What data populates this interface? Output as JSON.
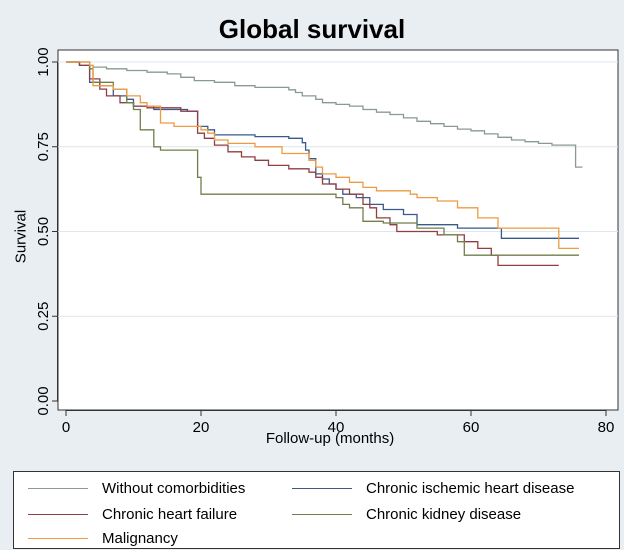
{
  "chart_data": {
    "type": "line",
    "title": "Global survival",
    "xlabel": "Follow-up (months)",
    "ylabel": "Survival",
    "xlim": [
      0,
      80
    ],
    "ylim": [
      0,
      1
    ],
    "xticks": [
      0,
      20,
      40,
      60,
      80
    ],
    "yticks": [
      0.0,
      0.25,
      0.5,
      0.75,
      1.0
    ],
    "xtick_labels": [
      "0",
      "20",
      "40",
      "60",
      "80"
    ],
    "ytick_labels": [
      "0.00",
      "0.25",
      "0.50",
      "0.75",
      "1.00"
    ],
    "grid": "horizontal",
    "legend_position": "bottom",
    "series": [
      {
        "name": "Without comorbidities",
        "color": "#8a9a91",
        "points": [
          [
            0,
            1.0
          ],
          [
            1,
            1.0
          ],
          [
            2,
            0.99
          ],
          [
            4,
            0.985
          ],
          [
            6,
            0.98
          ],
          [
            9,
            0.975
          ],
          [
            12,
            0.97
          ],
          [
            15,
            0.965
          ],
          [
            17,
            0.955
          ],
          [
            19,
            0.945
          ],
          [
            22,
            0.94
          ],
          [
            25,
            0.93
          ],
          [
            28,
            0.925
          ],
          [
            33,
            0.918
          ],
          [
            34,
            0.91
          ],
          [
            35,
            0.9
          ],
          [
            37,
            0.89
          ],
          [
            38,
            0.88
          ],
          [
            40,
            0.875
          ],
          [
            42,
            0.87
          ],
          [
            44,
            0.86
          ],
          [
            46,
            0.852
          ],
          [
            48,
            0.845
          ],
          [
            50,
            0.835
          ],
          [
            52,
            0.825
          ],
          [
            54,
            0.818
          ],
          [
            56,
            0.81
          ],
          [
            58,
            0.802
          ],
          [
            60,
            0.797
          ],
          [
            62,
            0.788
          ],
          [
            64,
            0.778
          ],
          [
            66,
            0.77
          ],
          [
            68,
            0.765
          ],
          [
            70,
            0.76
          ],
          [
            72,
            0.755
          ],
          [
            75.5,
            0.69
          ],
          [
            76.5,
            0.69
          ]
        ]
      },
      {
        "name": "Chronic ischemic heart disease",
        "color": "#3a5a8c",
        "points": [
          [
            0,
            1.0
          ],
          [
            2,
            0.99
          ],
          [
            3.5,
            0.94
          ],
          [
            5,
            0.93
          ],
          [
            7,
            0.9
          ],
          [
            9,
            0.89
          ],
          [
            10,
            0.87
          ],
          [
            13,
            0.86
          ],
          [
            18,
            0.855
          ],
          [
            19.5,
            0.81
          ],
          [
            21,
            0.8
          ],
          [
            22,
            0.785
          ],
          [
            28,
            0.78
          ],
          [
            33,
            0.775
          ],
          [
            35,
            0.762
          ],
          [
            35.5,
            0.74
          ],
          [
            36,
            0.715
          ],
          [
            37,
            0.67
          ],
          [
            38,
            0.655
          ],
          [
            39,
            0.64
          ],
          [
            40,
            0.625
          ],
          [
            41,
            0.61
          ],
          [
            43,
            0.6
          ],
          [
            45,
            0.58
          ],
          [
            47,
            0.565
          ],
          [
            50,
            0.55
          ],
          [
            52,
            0.52
          ],
          [
            58,
            0.51
          ],
          [
            63,
            0.51
          ],
          [
            64.5,
            0.48
          ],
          [
            70,
            0.48
          ],
          [
            76,
            0.48
          ]
        ]
      },
      {
        "name": "Chronic heart failure",
        "color": "#8f3f42",
        "points": [
          [
            0,
            1.0
          ],
          [
            2,
            0.99
          ],
          [
            3.5,
            0.95
          ],
          [
            5,
            0.92
          ],
          [
            6,
            0.9
          ],
          [
            8,
            0.88
          ],
          [
            10,
            0.87
          ],
          [
            12,
            0.865
          ],
          [
            17,
            0.855
          ],
          [
            19.5,
            0.79
          ],
          [
            20.5,
            0.775
          ],
          [
            22,
            0.755
          ],
          [
            24,
            0.735
          ],
          [
            26,
            0.72
          ],
          [
            28,
            0.71
          ],
          [
            30,
            0.695
          ],
          [
            33,
            0.685
          ],
          [
            36,
            0.675
          ],
          [
            37,
            0.66
          ],
          [
            38,
            0.64
          ],
          [
            40,
            0.625
          ],
          [
            42,
            0.61
          ],
          [
            44,
            0.58
          ],
          [
            45,
            0.57
          ],
          [
            46,
            0.54
          ],
          [
            48,
            0.52
          ],
          [
            49,
            0.5
          ],
          [
            55,
            0.49
          ],
          [
            59,
            0.47
          ],
          [
            61,
            0.45
          ],
          [
            63,
            0.43
          ],
          [
            64,
            0.4
          ],
          [
            73,
            0.4
          ]
        ]
      },
      {
        "name": "Chronic kidney disease",
        "color": "#6f7f4a",
        "points": [
          [
            0,
            1.0
          ],
          [
            3.5,
            0.98
          ],
          [
            4,
            0.94
          ],
          [
            7,
            0.92
          ],
          [
            9,
            0.88
          ],
          [
            10,
            0.86
          ],
          [
            11,
            0.8
          ],
          [
            13,
            0.75
          ],
          [
            14,
            0.74
          ],
          [
            18,
            0.74
          ],
          [
            19.5,
            0.66
          ],
          [
            20,
            0.61
          ],
          [
            34,
            0.61
          ],
          [
            40,
            0.6
          ],
          [
            41,
            0.58
          ],
          [
            42,
            0.57
          ],
          [
            44,
            0.53
          ],
          [
            47,
            0.525
          ],
          [
            52,
            0.51
          ],
          [
            56,
            0.49
          ],
          [
            58,
            0.47
          ],
          [
            59,
            0.43
          ],
          [
            65,
            0.43
          ],
          [
            76,
            0.43
          ]
        ]
      },
      {
        "name": "Malignancy",
        "color": "#ee9b44",
        "points": [
          [
            0,
            1.0
          ],
          [
            3.5,
            0.99
          ],
          [
            4,
            0.93
          ],
          [
            7,
            0.92
          ],
          [
            9,
            0.9
          ],
          [
            11,
            0.88
          ],
          [
            12,
            0.87
          ],
          [
            14,
            0.82
          ],
          [
            16,
            0.81
          ],
          [
            20,
            0.8
          ],
          [
            21,
            0.79
          ],
          [
            22,
            0.77
          ],
          [
            24,
            0.76
          ],
          [
            28,
            0.75
          ],
          [
            32,
            0.73
          ],
          [
            36,
            0.71
          ],
          [
            37,
            0.69
          ],
          [
            38,
            0.67
          ],
          [
            40,
            0.66
          ],
          [
            42,
            0.645
          ],
          [
            44,
            0.63
          ],
          [
            46,
            0.62
          ],
          [
            51,
            0.61
          ],
          [
            52,
            0.6
          ],
          [
            55,
            0.59
          ],
          [
            58,
            0.57
          ],
          [
            61,
            0.54
          ],
          [
            64,
            0.51
          ],
          [
            72,
            0.51
          ],
          [
            73,
            0.45
          ],
          [
            76,
            0.45
          ]
        ]
      }
    ]
  }
}
